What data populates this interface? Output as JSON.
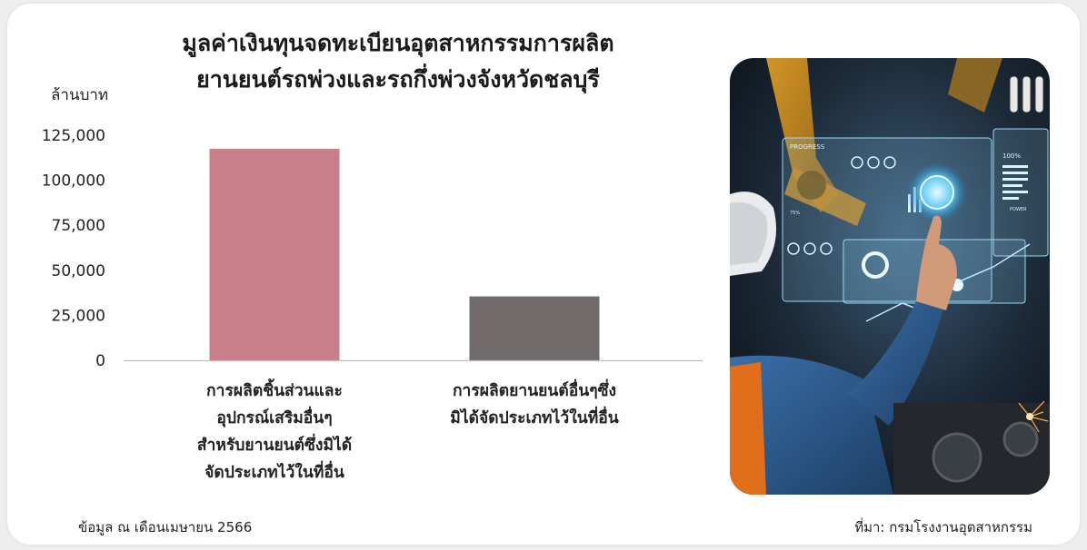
{
  "chart_data": {
    "type": "bar",
    "title_lines": [
      "มูลค่าเงินทุนจดทะเบียนอุตสาหกรรมการผลิต",
      "ยานยนต์รถพ่วงและรถกึ่งพ่วงจังหวัดชลบุรี"
    ],
    "ylabel": "ล้านบาท",
    "ylim": [
      0,
      125000
    ],
    "yticks": [
      0,
      25000,
      50000,
      75000,
      100000,
      125000
    ],
    "ytick_labels": [
      "0",
      "25,000",
      "50,000",
      "75,000",
      "100,000",
      "125,000"
    ],
    "grid": false,
    "categories": [
      {
        "lines": [
          "การผลิตชิ้นส่วนและ",
          "อุปกรณ์เสริมอื่นๆ",
          "สำหรับยานยนต์ซึ่งมิได้",
          "จัดประเภทไว้ในที่อื่น"
        ],
        "value": 117500,
        "color": "#c97f8a"
      },
      {
        "lines": [
          "การผลิตยานยนต์อื่นๆซึ่ง",
          "มิได้จัดประเภทไว้ในที่อื่น"
        ],
        "value": 35500,
        "color": "#716b6b"
      }
    ]
  },
  "footer": {
    "note": "ข้อมูล ณ เดือนเมษายน 2566",
    "source": "ที่มา: กรมโรงงานอุตสาหกรรม"
  },
  "image": {
    "icon": "industrial-technician-touchscreen-photo",
    "hud_labels": [
      "PROGRESS",
      "100%",
      "POWER",
      "75%"
    ]
  },
  "colors": {
    "background": "#eeeeef",
    "card": "#ffffff",
    "axis": "#bdbdbd"
  }
}
